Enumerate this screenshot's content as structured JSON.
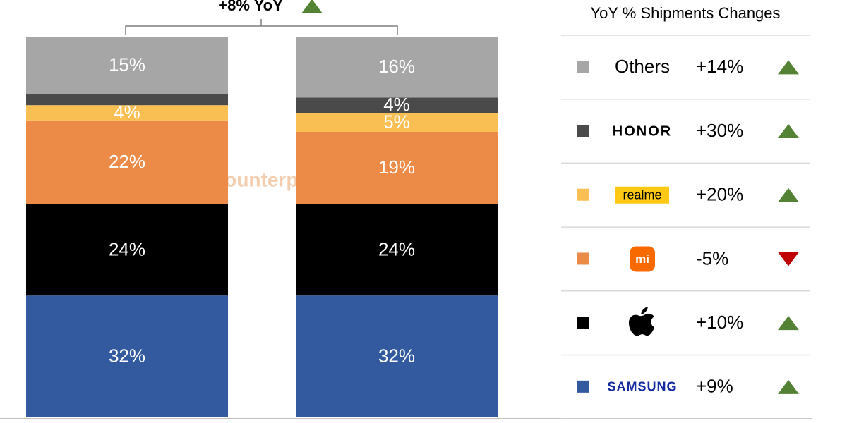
{
  "chart_data": {
    "type": "stacked_bar",
    "categories": [
      null,
      null
    ],
    "ylim": [
      0,
      100
    ],
    "annotation": {
      "text": "+8% YoY",
      "change": 8
    },
    "watermark": "Counterpoint",
    "legend_title": "YoY % Shipments Changes",
    "series": [
      {
        "name": "SAMSUNG",
        "color": "#335a9e",
        "values": [
          32,
          32
        ],
        "value_labels": [
          "32%",
          "32%"
        ],
        "change": 9,
        "change_label": "+9%"
      },
      {
        "name": null,
        "color": "#000000",
        "values": [
          24,
          24
        ],
        "value_labels": [
          "24%",
          "24%"
        ],
        "change": 10,
        "change_label": "+10%"
      },
      {
        "name": "mi",
        "color": "#ec8b47",
        "values": [
          22,
          19
        ],
        "value_labels": [
          "22%",
          "19%"
        ],
        "change": -5,
        "change_label": "-5%"
      },
      {
        "name": "realme",
        "color": "#f9bf52",
        "values": [
          4,
          5
        ],
        "value_labels": [
          "4%",
          "5%"
        ],
        "change": 20,
        "change_label": "+20%"
      },
      {
        "name": "HONOR",
        "color": "#4a4a4a",
        "values": [
          3,
          4
        ],
        "value_labels": [
          null,
          "4%"
        ],
        "change": 30,
        "change_label": "+30%"
      },
      {
        "name": "Others",
        "color": "#a6a6a6",
        "values": [
          15,
          16
        ],
        "value_labels": [
          "15%",
          "16%"
        ],
        "change": 14,
        "change_label": "+14%"
      }
    ]
  }
}
